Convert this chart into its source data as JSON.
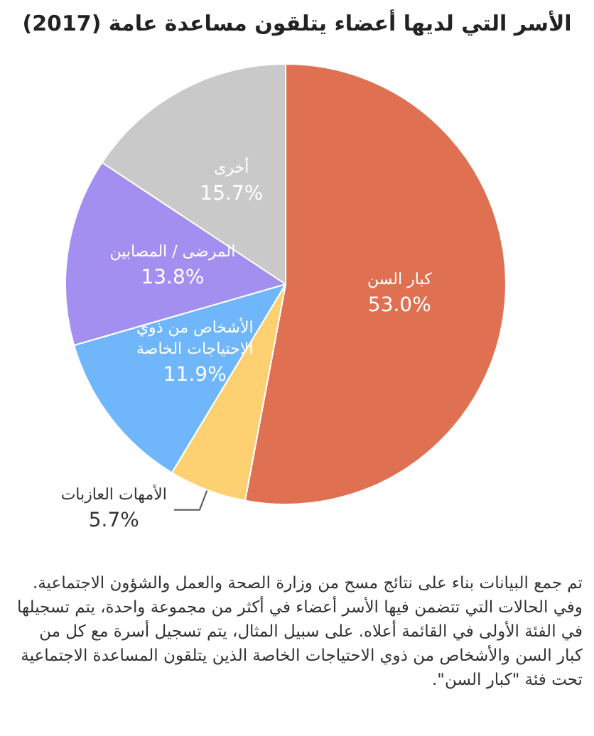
{
  "chart_data": {
    "type": "pie",
    "title": "الأسر التي لديها أعضاء يتلقون مساعدة عامة (2017)",
    "categories": [
      "كبار السن",
      "الأمهات العازبات",
      "الأشخاص من ذوي الاحتياجات الخاصة",
      "المرضى / المصابين",
      "أخرى"
    ],
    "values": [
      53.0,
      5.7,
      11.9,
      13.8,
      15.7
    ],
    "value_labels": [
      "53.0%",
      "5.7%",
      "11.9%",
      "13.8%",
      "15.7%"
    ],
    "colors": [
      "#e07052",
      "#fdd072",
      "#6fb6fb",
      "#a38ff0",
      "#c9c9c9"
    ],
    "annotations": [
      "تم جمع البيانات بناء على نتائج مسح من وزارة الصحة والعمل والشؤون الاجتماعية. وفي الحالات التي تتضمن فيها الأسر أعضاء في أكثر من مجموعة واحدة، يتم تسجيلها في الفئة الأولى في القائمة أعلاه. على سبيل المثال، يتم تسجيل أسرة مع كل من كبار السن والأشخاص من ذوي الاحتياجات الخاصة الذين يتلقون المساعدة الاجتماعية تحت فئة \"كبار السن\"."
    ]
  }
}
